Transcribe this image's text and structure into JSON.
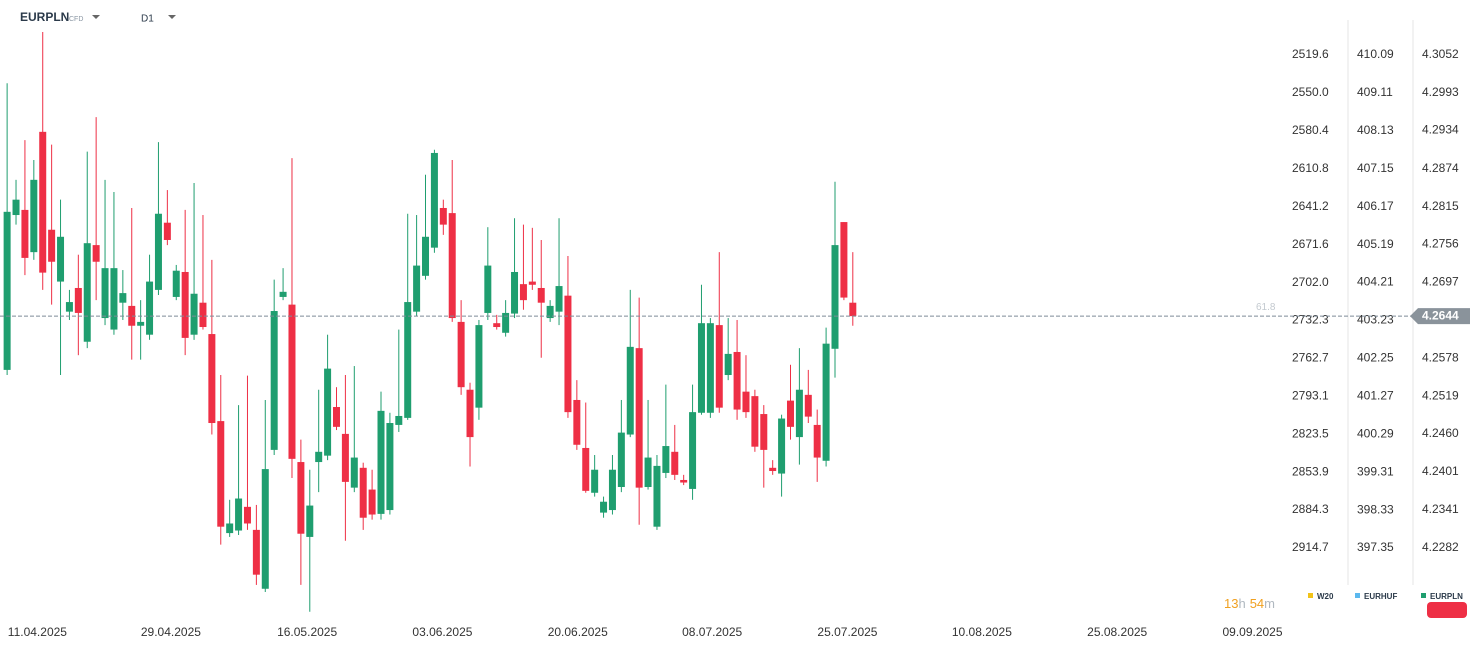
{
  "chart_data": {
    "type": "candlestick",
    "symbol": "EURPLN",
    "instrument_type": "CFD",
    "interval": "D1",
    "up_color": "#1f9e6f",
    "down_color": "#ee2f45",
    "open": [
      4.256,
      4.2802,
      4.281,
      4.2744,
      4.2932,
      4.2779,
      4.2698,
      4.2651,
      4.2688,
      4.2604,
      4.2755,
      4.2641,
      4.2623,
      4.2665,
      4.266,
      4.2629,
      4.2615,
      4.2685,
      4.279,
      4.2674,
      4.2713,
      4.2615,
      4.2665,
      4.2616,
      4.248,
      4.2305,
      4.2309,
      4.2346,
      4.231,
      4.2218,
      4.2435,
      4.2674,
      4.2662,
      4.2416,
      4.2299,
      4.2416,
      4.2426,
      4.2502,
      4.246,
      4.2376,
      4.2407,
      4.2373,
      4.2335,
      4.2341,
      4.2474,
      4.2485,
      4.2651,
      4.2707,
      4.2751,
      4.2813,
      4.2805,
      4.2635,
      4.2529,
      4.2501,
      4.2649,
      4.2633,
      4.2618,
      4.2648,
      4.2694,
      4.2698,
      4.2688,
      4.2641,
      4.2651,
      4.2676,
      4.2513,
      4.2438,
      4.2368,
      4.2337,
      4.2341,
      4.2377,
      4.2459,
      4.2594,
      4.2377,
      4.2315,
      4.2399,
      4.2432,
      4.2388,
      4.2374,
      4.2493,
      4.2493,
      4.263,
      4.2552,
      4.2588,
      4.2526,
      4.2519,
      4.2491,
      4.2407,
      4.2398,
      4.2512,
      4.2455,
      4.2521,
      4.2474,
      4.2418,
      4.2593,
      4.2791,
      4.2665
    ],
    "high": [
      4.3008,
      4.2857,
      4.2919,
      4.2888,
      4.3088,
      4.2912,
      4.2826,
      4.2685,
      4.274,
      4.2901,
      4.2955,
      4.2857,
      4.2838,
      4.2716,
      4.2813,
      4.2669,
      4.274,
      4.2916,
      4.2841,
      4.2724,
      4.281,
      4.2852,
      4.2802,
      4.2732,
      4.2552,
      4.2357,
      4.2505,
      4.2551,
      4.2349,
      4.2513,
      4.2701,
      4.2719,
      4.2891,
      4.2451,
      4.2404,
      4.2529,
      4.2615,
      4.2533,
      4.2552,
      4.2566,
      4.2415,
      4.2404,
      4.2526,
      4.2493,
      4.2623,
      4.2804,
      4.2802,
      4.2865,
      4.2904,
      4.2826,
      4.2888,
      4.2669,
      4.254,
      4.2638,
      4.2783,
      4.2646,
      4.2669,
      4.2797,
      4.2787,
      4.2782,
      4.2763,
      4.2669,
      4.2797,
      4.2738,
      4.2544,
      4.2509,
      4.2427,
      4.2362,
      4.2427,
      4.2513,
      4.2685,
      4.2673,
      4.2513,
      4.2427,
      4.2537,
      4.2474,
      4.2396,
      4.2537,
      4.2693,
      4.2641,
      4.2744,
      4.2641,
      4.2638,
      4.2583,
      4.2529,
      4.2505,
      4.2419,
      4.249,
      4.2568,
      4.2594,
      4.256,
      4.2498,
      4.2626,
      4.2854,
      4.2791,
      4.2744
    ],
    "low": [
      4.2552,
      4.2787,
      4.2708,
      4.2732,
      4.2685,
      4.2662,
      4.2552,
      4.2638,
      4.2583,
      4.2594,
      4.2669,
      4.263,
      4.2615,
      4.2638,
      4.2576,
      4.2576,
      4.2607,
      4.2677,
      4.2755,
      4.2669,
      4.2583,
      4.2607,
      4.2623,
      4.2459,
      4.2287,
      4.2299,
      4.2302,
      4.231,
      4.2224,
      4.2213,
      4.2427,
      4.2669,
      4.2391,
      4.2224,
      4.2182,
      4.2369,
      4.2419,
      4.2466,
      4.2293,
      4.2369,
      4.231,
      4.2326,
      4.2326,
      4.2334,
      4.2463,
      4.2482,
      4.2644,
      4.2701,
      4.2743,
      4.2771,
      4.2635,
      4.2521,
      4.2409,
      4.2482,
      4.2638,
      4.2623,
      4.2612,
      4.2641,
      4.2654,
      4.2685,
      4.2579,
      4.2635,
      4.263,
      4.2485,
      4.2435,
      4.2368,
      4.2362,
      4.2329,
      4.2334,
      4.2369,
      4.2455,
      4.2318,
      4.2373,
      4.231,
      4.2391,
      4.2388,
      4.238,
      4.2357,
      4.249,
      4.2485,
      4.2493,
      4.2544,
      4.2482,
      4.2485,
      4.2432,
      4.2376,
      4.2396,
      4.2362,
      4.2451,
      4.2412,
      4.2477,
      4.2385,
      4.2409,
      4.2548,
      4.2669,
      4.2629
    ],
    "close": [
      4.2807,
      4.2826,
      4.2735,
      4.2857,
      4.2712,
      4.2729,
      4.2768,
      4.2666,
      4.2649,
      4.2758,
      4.2729,
      4.2719,
      4.2719,
      4.268,
      4.2629,
      4.2635,
      4.2698,
      4.2804,
      4.2763,
      4.2715,
      4.261,
      4.2679,
      4.2627,
      4.2477,
      4.2315,
      4.232,
      4.2359,
      4.232,
      4.224,
      4.2405,
      4.2652,
      4.2682,
      4.2421,
      4.2304,
      4.2348,
      4.2432,
      4.2562,
      4.2471,
      4.2385,
      4.2423,
      4.2329,
      4.2334,
      4.2496,
      4.2477,
      4.2488,
      4.2666,
      4.2723,
      4.2768,
      4.2899,
      4.2787,
      4.2641,
      4.2533,
      4.2455,
      4.263,
      4.2723,
      4.2627,
      4.2649,
      4.2713,
      4.2669,
      4.2693,
      4.2665,
      4.266,
      4.2691,
      4.2494,
      4.2443,
      4.2371,
      4.2404,
      4.2354,
      4.2404,
      4.2462,
      4.2596,
      4.2376,
      4.2423,
      4.241,
      4.2441,
      4.2396,
      4.2384,
      4.2494,
      4.2633,
      4.2633,
      4.2501,
      4.2585,
      4.2498,
      4.2494,
      4.244,
      4.2435,
      4.2402,
      4.2484,
      4.2471,
      4.2529,
      4.2487,
      4.2423,
      4.2601,
      4.2755,
      4.2673,
      4.2644
    ],
    "last_price": 4.2644,
    "level_label": "61.8",
    "xlim": [
      -0.8,
      144
    ],
    "xticks": [
      {
        "value": 3.4,
        "label": "11.04.2025"
      },
      {
        "value": 18.4,
        "label": "29.04.2025"
      },
      {
        "value": 33.7,
        "label": "16.05.2025"
      },
      {
        "value": 48.9,
        "label": "03.06.2025"
      },
      {
        "value": 64.1,
        "label": "20.06.2025"
      },
      {
        "value": 79.2,
        "label": "08.07.2025"
      },
      {
        "value": 94.4,
        "label": "25.07.2025"
      },
      {
        "value": 109.5,
        "label": "10.08.2025"
      },
      {
        "value": 124.7,
        "label": "25.08.2025"
      },
      {
        "value": 139.9,
        "label": "09.09.2025"
      }
    ],
    "axes": [
      {
        "name": "W20",
        "color": "#f2c318",
        "ylim": [
          2968.4,
          2475.5
        ],
        "yticks": [
          2519.6,
          {
            "value": 2550.0,
            "label": "2550.0"
          },
          2580.4,
          2610.8,
          2641.2,
          2671.6,
          {
            "value": 2702.0,
            "label": "2702.0"
          },
          2732.3,
          2762.7,
          2793.1,
          2823.5,
          2853.9,
          2884.3,
          2914.7
        ]
      },
      {
        "name": "EURHUF",
        "color": "#5bb8ee",
        "ylim": [
          395.62,
          411.51
        ],
        "yticks": [
          410.09,
          409.11,
          408.13,
          407.15,
          406.17,
          405.19,
          404.21,
          403.23,
          402.25,
          401.27,
          400.29,
          399.31,
          398.33,
          397.35
        ]
      },
      {
        "name": "EURPLN",
        "color": "#1f9e6f",
        "ylim": [
          4.2177,
          4.3138
        ],
        "yticks": [
          4.3052,
          4.2993,
          4.2934,
          4.2874,
          4.2815,
          4.2756,
          4.2697,
          4.2578,
          4.2519,
          {
            "value": 4.246,
            "label": "4.2460"
          },
          4.2401,
          4.2341,
          4.2282
        ]
      }
    ],
    "timer": {
      "hours": 13,
      "hours_unit": "h",
      "minutes": 54,
      "minutes_unit": "m"
    }
  }
}
